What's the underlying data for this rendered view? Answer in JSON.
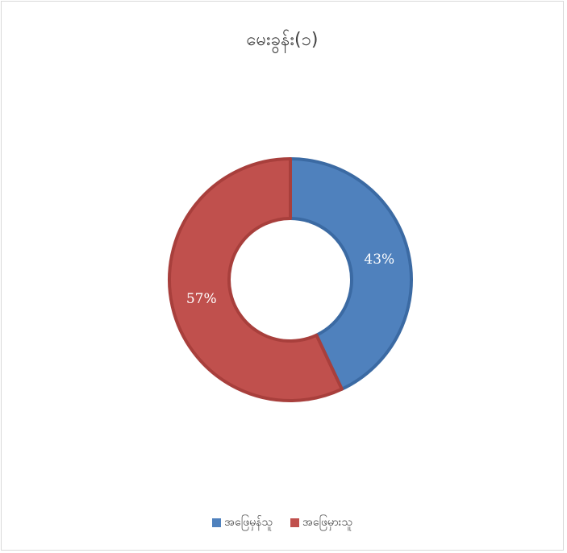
{
  "chart_data": {
    "type": "pie",
    "subtype": "doughnut",
    "title": "မေးခွန်း(၁)",
    "categories": [
      "အဖြေမှန်သူ",
      "အဖြေမှားသူ"
    ],
    "values": [
      43,
      57
    ],
    "data_labels": [
      "43%",
      "57%"
    ],
    "colors": [
      "#4f81bd",
      "#c0504d"
    ],
    "border_colors": [
      "#3b6aa3",
      "#a83f3c"
    ],
    "legend_position": "bottom"
  }
}
